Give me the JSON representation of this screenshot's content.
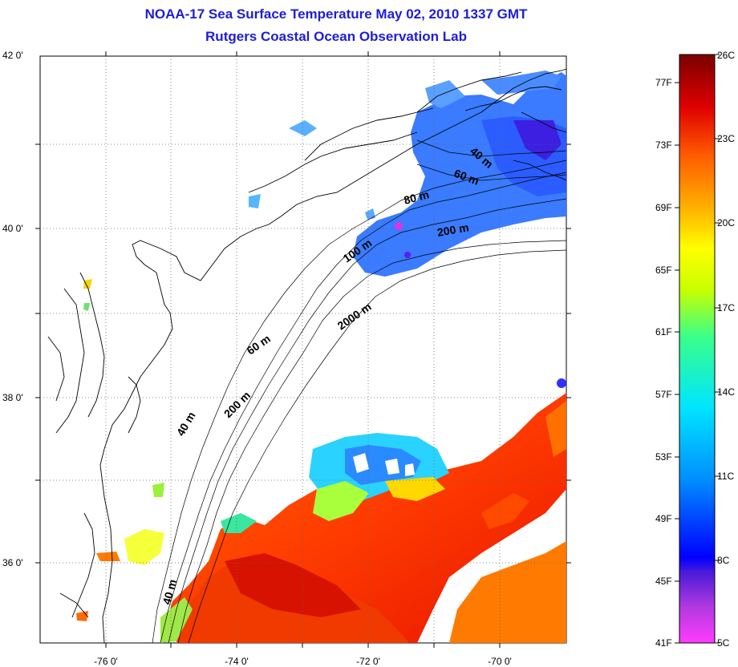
{
  "title": {
    "line1": "NOAA-17 Sea Surface Temperature May 02, 2010 1337 GMT",
    "line2": "Rutgers Coastal Ocean Observation Lab"
  },
  "map": {
    "lat_range": [
      35,
      42
    ],
    "lon_range": [
      -77,
      -69
    ],
    "lat_ticks": [
      "42 0'",
      "40 0'",
      "38 0'",
      "36 0'"
    ],
    "lon_ticks": [
      "-76 0'",
      "-74 0'",
      "-72 0'",
      "-70 0'"
    ],
    "grid": "dotted",
    "isobath_labels": [
      {
        "text": "40 m"
      },
      {
        "text": "60 m"
      },
      {
        "text": "80 m"
      },
      {
        "text": "100 m"
      },
      {
        "text": "200 m"
      },
      {
        "text": "2000 m"
      },
      {
        "text": "60 m"
      },
      {
        "text": "200 m"
      },
      {
        "text": "40 m"
      },
      {
        "text": "40 m"
      }
    ]
  },
  "colorbar": {
    "min_c": 5,
    "max_c": 26,
    "celsius_labels": [
      "26C",
      "23C",
      "20C",
      "17C",
      "14C",
      "11C",
      "8C",
      "5C"
    ],
    "fahrenheit_labels": [
      "77F",
      "73F",
      "69F",
      "65F",
      "61F",
      "57F",
      "53F",
      "49F",
      "45F",
      "41F"
    ],
    "colors": [
      "#ff3cff",
      "#8b2fc9",
      "#0000ff",
      "#0090ff",
      "#00e5ff",
      "#39ff8a",
      "#c8ff00",
      "#ffff00",
      "#ffb000",
      "#ff5a00",
      "#e00000",
      "#7a0000"
    ]
  }
}
